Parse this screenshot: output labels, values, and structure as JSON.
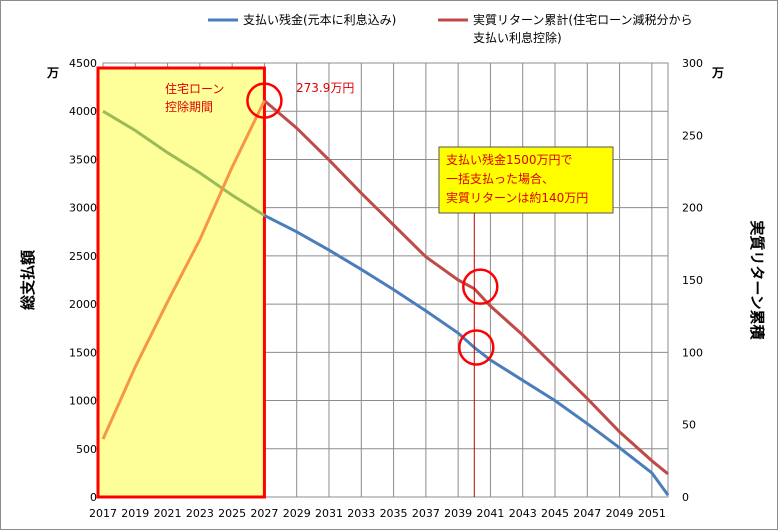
{
  "chart_data": {
    "type": "line",
    "x_ticks": [
      "2017",
      "2019",
      "2021",
      "2023",
      "2025",
      "2027",
      "2029",
      "2031",
      "2033",
      "2035",
      "2037",
      "2039",
      "2041",
      "2043",
      "2045",
      "2047",
      "2049",
      "2051"
    ],
    "x_range": [
      2017,
      2052
    ],
    "left_axis": {
      "label": "総支払額",
      "unit": "万",
      "ylim": [
        0,
        4500
      ],
      "ticks": [
        "0",
        "500",
        "1000",
        "1500",
        "2000",
        "2500",
        "3000",
        "3500",
        "4000",
        "4500"
      ]
    },
    "right_axis": {
      "label": "実質リターン累積",
      "unit": "万",
      "ylim": [
        0,
        300
      ],
      "ticks": [
        "0",
        "50",
        "100",
        "150",
        "200",
        "250",
        "300"
      ]
    },
    "series": [
      {
        "name": "支払い残金(元本に利息込み)",
        "axis": "left",
        "color": "#4a7ebb",
        "points": [
          [
            2017,
            4000
          ],
          [
            2019,
            3800
          ],
          [
            2021,
            3570
          ],
          [
            2023,
            3360
          ],
          [
            2025,
            3130
          ],
          [
            2027,
            2920
          ],
          [
            2029,
            2750
          ],
          [
            2031,
            2560
          ],
          [
            2033,
            2360
          ],
          [
            2035,
            2150
          ],
          [
            2037,
            1930
          ],
          [
            2039,
            1700
          ],
          [
            2040,
            1550
          ],
          [
            2041,
            1420
          ],
          [
            2043,
            1210
          ],
          [
            2045,
            1000
          ],
          [
            2047,
            760
          ],
          [
            2049,
            510
          ],
          [
            2051,
            250
          ],
          [
            2052,
            20
          ]
        ]
      },
      {
        "name": "実質リターン累計(住宅ローン減税分から支払い利息控除)",
        "axis": "right",
        "color": "#be4b48",
        "points": [
          [
            2017,
            40
          ],
          [
            2019,
            90
          ],
          [
            2021,
            135
          ],
          [
            2023,
            178
          ],
          [
            2025,
            228
          ],
          [
            2027,
            274
          ],
          [
            2029,
            255
          ],
          [
            2031,
            233
          ],
          [
            2033,
            210
          ],
          [
            2035,
            188
          ],
          [
            2037,
            166
          ],
          [
            2039,
            150
          ],
          [
            2040,
            144
          ],
          [
            2041,
            132
          ],
          [
            2043,
            112
          ],
          [
            2045,
            90
          ],
          [
            2047,
            68
          ],
          [
            2049,
            45
          ],
          [
            2051,
            25
          ],
          [
            2052,
            16
          ]
        ]
      }
    ],
    "overlay_colors": {
      "green": "#9bbb59",
      "orange": "#f79646",
      "highlight": "#ffff99",
      "red": "#ff0000"
    },
    "annotations": {
      "period_label": [
        "住宅ローン",
        "控除期間"
      ],
      "peak_label": "273.9万円",
      "callout": [
        "支払い残金1500万円で",
        "一括支払った場合、",
        "実質リターンは約140万円"
      ]
    },
    "legend": [
      {
        "lines": [
          "支払い残金(元本に利息込み)"
        ],
        "color": "#4a7ebb"
      },
      {
        "lines": [
          "実質リターン累計(住宅ローン減税分から",
          "支払い利息控除)"
        ],
        "color": "#be4b48"
      }
    ]
  }
}
